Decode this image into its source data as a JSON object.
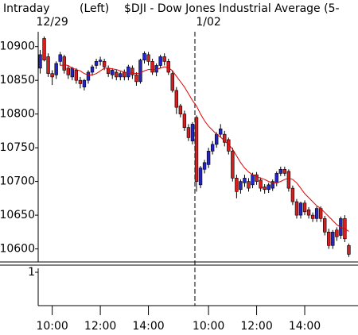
{
  "chart_data": [
    {
      "type": "candlestick",
      "title": "Intraday",
      "subtitle": "(Left)",
      "symbol_title": "$DJI - Dow Jones Industrial Average  (5-",
      "sessions": [
        {
          "label": "12/29",
          "start": 0
        },
        {
          "label": "1/02",
          "start": 39
        }
      ],
      "x": [
        0,
        1,
        2,
        3,
        4,
        5,
        6,
        7,
        8,
        9,
        10,
        11,
        12,
        13,
        14,
        15,
        16,
        17,
        18,
        19,
        20,
        21,
        22,
        23,
        24,
        25,
        26,
        27,
        28,
        29,
        30,
        31,
        32,
        33,
        34,
        35,
        36,
        37,
        38,
        39,
        40,
        41,
        42,
        43,
        44,
        45,
        46,
        47,
        48,
        49,
        50,
        51,
        52,
        53,
        54,
        55,
        56,
        57,
        58,
        59,
        60,
        61,
        62,
        63,
        64,
        65,
        66,
        67,
        68,
        69,
        70,
        71,
        72,
        73,
        74,
        75,
        76,
        77
      ],
      "open": [
        10868,
        10912,
        10885,
        10860,
        10858,
        10878,
        10885,
        10868,
        10855,
        10865,
        10850,
        10840,
        10850,
        10862,
        10872,
        10878,
        10878,
        10868,
        10858,
        10862,
        10855,
        10862,
        10855,
        10868,
        10858,
        10848,
        10880,
        10888,
        10878,
        10862,
        10872,
        10885,
        10878,
        10860,
        10835,
        10812,
        10800,
        10780,
        10760,
        10795,
        10695,
        10718,
        10725,
        10745,
        10755,
        10770,
        10770,
        10762,
        10745,
        10705,
        10688,
        10698,
        10700,
        10695,
        10710,
        10702,
        10692,
        10688,
        10690,
        10698,
        10712,
        10718,
        10715,
        10690,
        10670,
        10650,
        10668,
        10658,
        10650,
        10645,
        10660,
        10645,
        10625,
        10605,
        10628,
        10620,
        10645,
        10605
      ],
      "high": [
        10895,
        10915,
        10890,
        10865,
        10878,
        10892,
        10888,
        10872,
        10870,
        10868,
        10855,
        10852,
        10865,
        10873,
        10882,
        10885,
        10882,
        10872,
        10868,
        10866,
        10863,
        10866,
        10873,
        10872,
        10862,
        10882,
        10893,
        10892,
        10882,
        10875,
        10888,
        10890,
        10882,
        10865,
        10840,
        10815,
        10805,
        10785,
        10788,
        10798,
        10723,
        10732,
        10750,
        10760,
        10773,
        10785,
        10775,
        10765,
        10750,
        10710,
        10703,
        10710,
        10705,
        10713,
        10714,
        10706,
        10696,
        10698,
        10703,
        10715,
        10722,
        10722,
        10718,
        10694,
        10674,
        10670,
        10672,
        10662,
        10654,
        10663,
        10663,
        10649,
        10630,
        10628,
        10632,
        10648,
        10650,
        10608
      ],
      "low": [
        10860,
        10878,
        10855,
        10843,
        10852,
        10872,
        10860,
        10852,
        10850,
        10845,
        10838,
        10835,
        10845,
        10857,
        10867,
        10872,
        10865,
        10855,
        10852,
        10850,
        10850,
        10850,
        10850,
        10852,
        10842,
        10845,
        10875,
        10872,
        10858,
        10856,
        10868,
        10872,
        10858,
        10832,
        10800,
        10795,
        10775,
        10760,
        10755,
        10685,
        10690,
        10712,
        10720,
        10740,
        10750,
        10765,
        10752,
        10740,
        10700,
        10675,
        10682,
        10692,
        10685,
        10690,
        10695,
        10685,
        10682,
        10683,
        10686,
        10693,
        10708,
        10708,
        10685,
        10665,
        10645,
        10645,
        10650,
        10645,
        10640,
        10640,
        10640,
        10620,
        10600,
        10600,
        10612,
        10615,
        10610,
        10588
      ],
      "close": [
        10888,
        10880,
        10860,
        10855,
        10875,
        10888,
        10865,
        10858,
        10868,
        10850,
        10845,
        10850,
        10862,
        10870,
        10878,
        10880,
        10870,
        10860,
        10865,
        10855,
        10860,
        10855,
        10870,
        10858,
        10848,
        10880,
        10890,
        10878,
        10862,
        10872,
        10885,
        10878,
        10862,
        10835,
        10810,
        10800,
        10780,
        10765,
        10785,
        10700,
        10720,
        10728,
        10745,
        10755,
        10770,
        10778,
        10758,
        10745,
        10705,
        10685,
        10700,
        10705,
        10690,
        10710,
        10700,
        10690,
        10688,
        10695,
        10700,
        10712,
        10718,
        10712,
        10690,
        10670,
        10650,
        10668,
        10655,
        10650,
        10645,
        10660,
        10645,
        10625,
        10605,
        10625,
        10618,
        10645,
        10615,
        10592
      ],
      "up_color": "#2424c8",
      "down_color": "#d42020",
      "moving_average": {
        "color": "#e00000",
        "values": [
          null,
          null,
          null,
          null,
          null,
          10872,
          10873,
          10872,
          10868,
          10866,
          10864,
          10860,
          10858,
          10858,
          10860,
          10864,
          10868,
          10868,
          10867,
          10866,
          10864,
          10862,
          10861,
          10861,
          10860,
          10861,
          10864,
          10866,
          10866,
          10866,
          10868,
          10870,
          10869,
          10864,
          10856,
          10848,
          10840,
          10830,
          10820,
          10812,
          10800,
          10790,
          10782,
          10776,
          10770,
          10766,
          10760,
          10755,
          10748,
          10738,
          10728,
          10720,
          10714,
          10710,
          10707,
          10705,
          10703,
          10700,
          10698,
          10698,
          10700,
          10703,
          10705,
          10703,
          10698,
          10690,
          10682,
          10676,
          10670,
          10664,
          10660,
          10654,
          10648,
          10642,
          10636,
          10632,
          10630,
          10626
        ]
      },
      "xlim": [
        -0.5,
        78.5
      ],
      "ylim": [
        10583,
        10922
      ],
      "yticks": [
        10600,
        10650,
        10700,
        10750,
        10800,
        10850,
        10900
      ],
      "xticks": [
        {
          "value": 3,
          "label": "10:00"
        },
        {
          "value": 15,
          "label": "12:00"
        },
        {
          "value": 27,
          "label": "14:00"
        },
        {
          "value": 42,
          "label": "10:00"
        },
        {
          "value": 54,
          "label": "12:00"
        },
        {
          "value": 66,
          "label": "14:00"
        }
      ]
    },
    {
      "type": "indicator",
      "ylim": [
        0,
        1
      ],
      "yticks": [
        1
      ]
    }
  ]
}
